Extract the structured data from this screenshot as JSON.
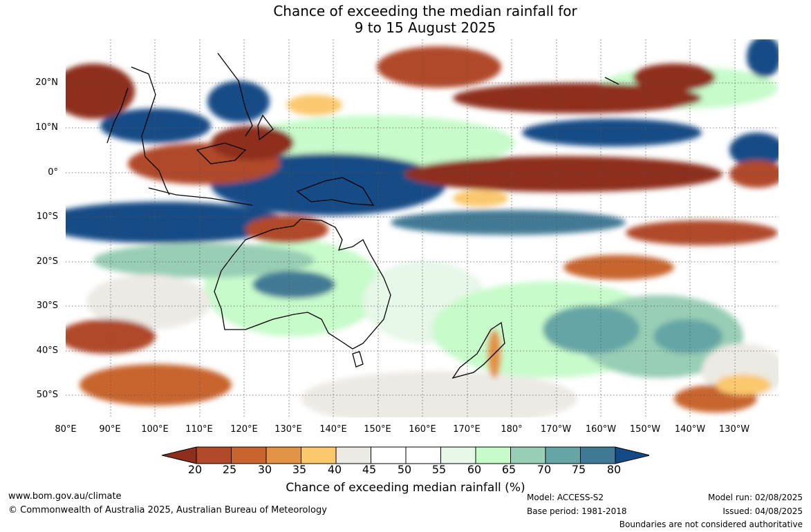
{
  "title": {
    "line1": "Chance of exceeding the median rainfall for",
    "line2": "9 to 15 August 2025"
  },
  "map": {
    "lat_labels": [
      "20°N",
      "10°N",
      "0°",
      "10°S",
      "20°S",
      "30°S",
      "40°S",
      "50°S"
    ],
    "lon_labels": [
      "80°E",
      "90°E",
      "100°E",
      "110°E",
      "120°E",
      "130°E",
      "140°E",
      "150°E",
      "160°E",
      "170°E",
      "180°",
      "170°W",
      "160°W",
      "150°W",
      "140°W",
      "130°W"
    ],
    "lat_range": [
      -55,
      30
    ],
    "lon_range": [
      80,
      240
    ],
    "grid": "dotted"
  },
  "colorbar": {
    "ticks": [
      "20",
      "25",
      "30",
      "35",
      "40",
      "45",
      "50",
      "55",
      "60",
      "65",
      "70",
      "75",
      "80"
    ],
    "colors": [
      "#8e2f1d",
      "#b0482a",
      "#c8652f",
      "#e29345",
      "#fbc86e",
      "#eceae4",
      "#ffffff",
      "#ffffff",
      "#e7f7e8",
      "#c7fbca",
      "#98ceb5",
      "#66a5a5",
      "#427a96",
      "#124b86"
    ],
    "label": "Chance of exceeding median rainfall (%)"
  },
  "footer": {
    "website": "www.bom.gov.au/climate",
    "copyright": "© Commonwealth of Australia 2025, Australian Bureau of Meteorology",
    "model": "Model: ACCESS-S2",
    "base_period": "Base period: 1981-2018",
    "model_run": "Model run: 02/08/2025",
    "issued": "Issued: 04/08/2025",
    "disclaimer": "Boundaries are not considered authoritative"
  }
}
